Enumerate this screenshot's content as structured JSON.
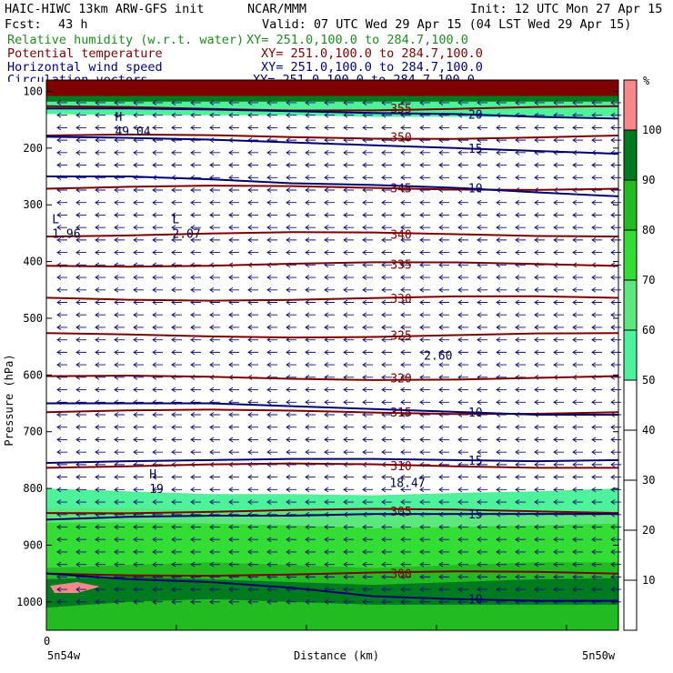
{
  "header": {
    "model_line": "HAIC-HIWC 13km ARW-GFS init",
    "org": "NCAR/MMM",
    "init": "Init: 12 UTC Mon 27 Apr 15",
    "fcst_label": "Fcst:",
    "fcst_value": "43 h",
    "valid": "Valid: 07 UTC Wed 29 Apr 15 (04 LST Wed 29 Apr 15)"
  },
  "fields": [
    {
      "name": "Relative humidity (w.r.t. water)",
      "xy": "XY= 251.0,100.0 to 284.7,100.0",
      "color": "#1e8c1e"
    },
    {
      "name": "Potential temperature",
      "xy": "XY= 251.0,100.0 to 284.7,100.0",
      "color": "#800000"
    },
    {
      "name": "Horizontal wind speed",
      "xy": "XY= 251.0,100.0 to 284.7,100.0",
      "color": "#000080"
    },
    {
      "name": "Circulation vectors",
      "xy": "XY= 251.0,100.0 to 284.7,100.0",
      "color": "#000080"
    }
  ],
  "chart_data": {
    "type": "heatmap",
    "xlabel": "Distance (km)",
    "ylabel": "Pressure (hPa)",
    "x_tick_labels": [
      "0"
    ],
    "x_end_labels": [
      "5n54w",
      "5n50w"
    ],
    "y_ticks": [
      100,
      200,
      300,
      400,
      500,
      600,
      700,
      800,
      900,
      1000
    ],
    "ylim": [
      1050,
      80
    ],
    "colorbar": {
      "unit": "%",
      "ticks": [
        10,
        20,
        30,
        40,
        50,
        60,
        70,
        80,
        90,
        100
      ],
      "bands": [
        {
          "from": 0,
          "to": 50,
          "color": "#ffffff"
        },
        {
          "from": 50,
          "to": 60,
          "color": "#4df29a"
        },
        {
          "from": 60,
          "to": 70,
          "color": "#5ce67c"
        },
        {
          "from": 70,
          "to": 80,
          "color": "#33dd33"
        },
        {
          "from": 80,
          "to": 90,
          "color": "#22bb22"
        },
        {
          "from": 90,
          "to": 100,
          "color": "#007a1f"
        },
        {
          "from": 100,
          "to": 110,
          "color": "#f5888a"
        }
      ]
    },
    "theta_contours": [
      {
        "value": 300,
        "p": 950
      },
      {
        "value": 305,
        "p": 840
      },
      {
        "value": 310,
        "p": 760
      },
      {
        "value": 315,
        "p": 665
      },
      {
        "value": 320,
        "p": 605
      },
      {
        "value": 325,
        "p": 530
      },
      {
        "value": 330,
        "p": 465
      },
      {
        "value": 335,
        "p": 405
      },
      {
        "value": 340,
        "p": 352
      },
      {
        "value": 345,
        "p": 270
      },
      {
        "value": 350,
        "p": 180
      },
      {
        "value": 355,
        "p": 130
      }
    ],
    "wind_contours": [
      {
        "value": 10,
        "p": [
          650,
          650,
          650,
          655,
          660,
          665,
          670,
          670
        ]
      },
      {
        "value": 15,
        "p": [
          755,
          752,
          750,
          748,
          748,
          750,
          752,
          750
        ]
      },
      {
        "value": 15,
        "p": [
          855,
          850,
          848,
          848,
          845,
          845,
          845,
          845
        ]
      },
      {
        "value": 10,
        "p": [
          950,
          960,
          965,
          975,
          990,
          995,
          998,
          998
        ]
      },
      {
        "value": 10,
        "p": [
          250,
          250,
          255,
          262,
          265,
          270,
          278,
          285
        ]
      },
      {
        "value": 15,
        "p": [
          180,
          182,
          185,
          190,
          195,
          200,
          205,
          210
        ]
      },
      {
        "value": 20,
        "p": [
          130,
          130,
          132,
          135,
          138,
          140,
          145,
          148
        ]
      }
    ],
    "extrema": [
      {
        "label": "H",
        "value": "49.04",
        "x": 0.12,
        "p": 165
      },
      {
        "label": "L",
        "value": "1.96",
        "x": 0.01,
        "p": 345
      },
      {
        "label": "L",
        "value": "2.07",
        "x": 0.22,
        "p": 345
      },
      {
        "label": "H",
        "value": "19",
        "x": 0.18,
        "p": 795
      },
      {
        "value": "18.47",
        "x": 0.6,
        "p": 785
      },
      {
        "value": "2.60",
        "x": 0.66,
        "p": 560
      }
    ]
  }
}
